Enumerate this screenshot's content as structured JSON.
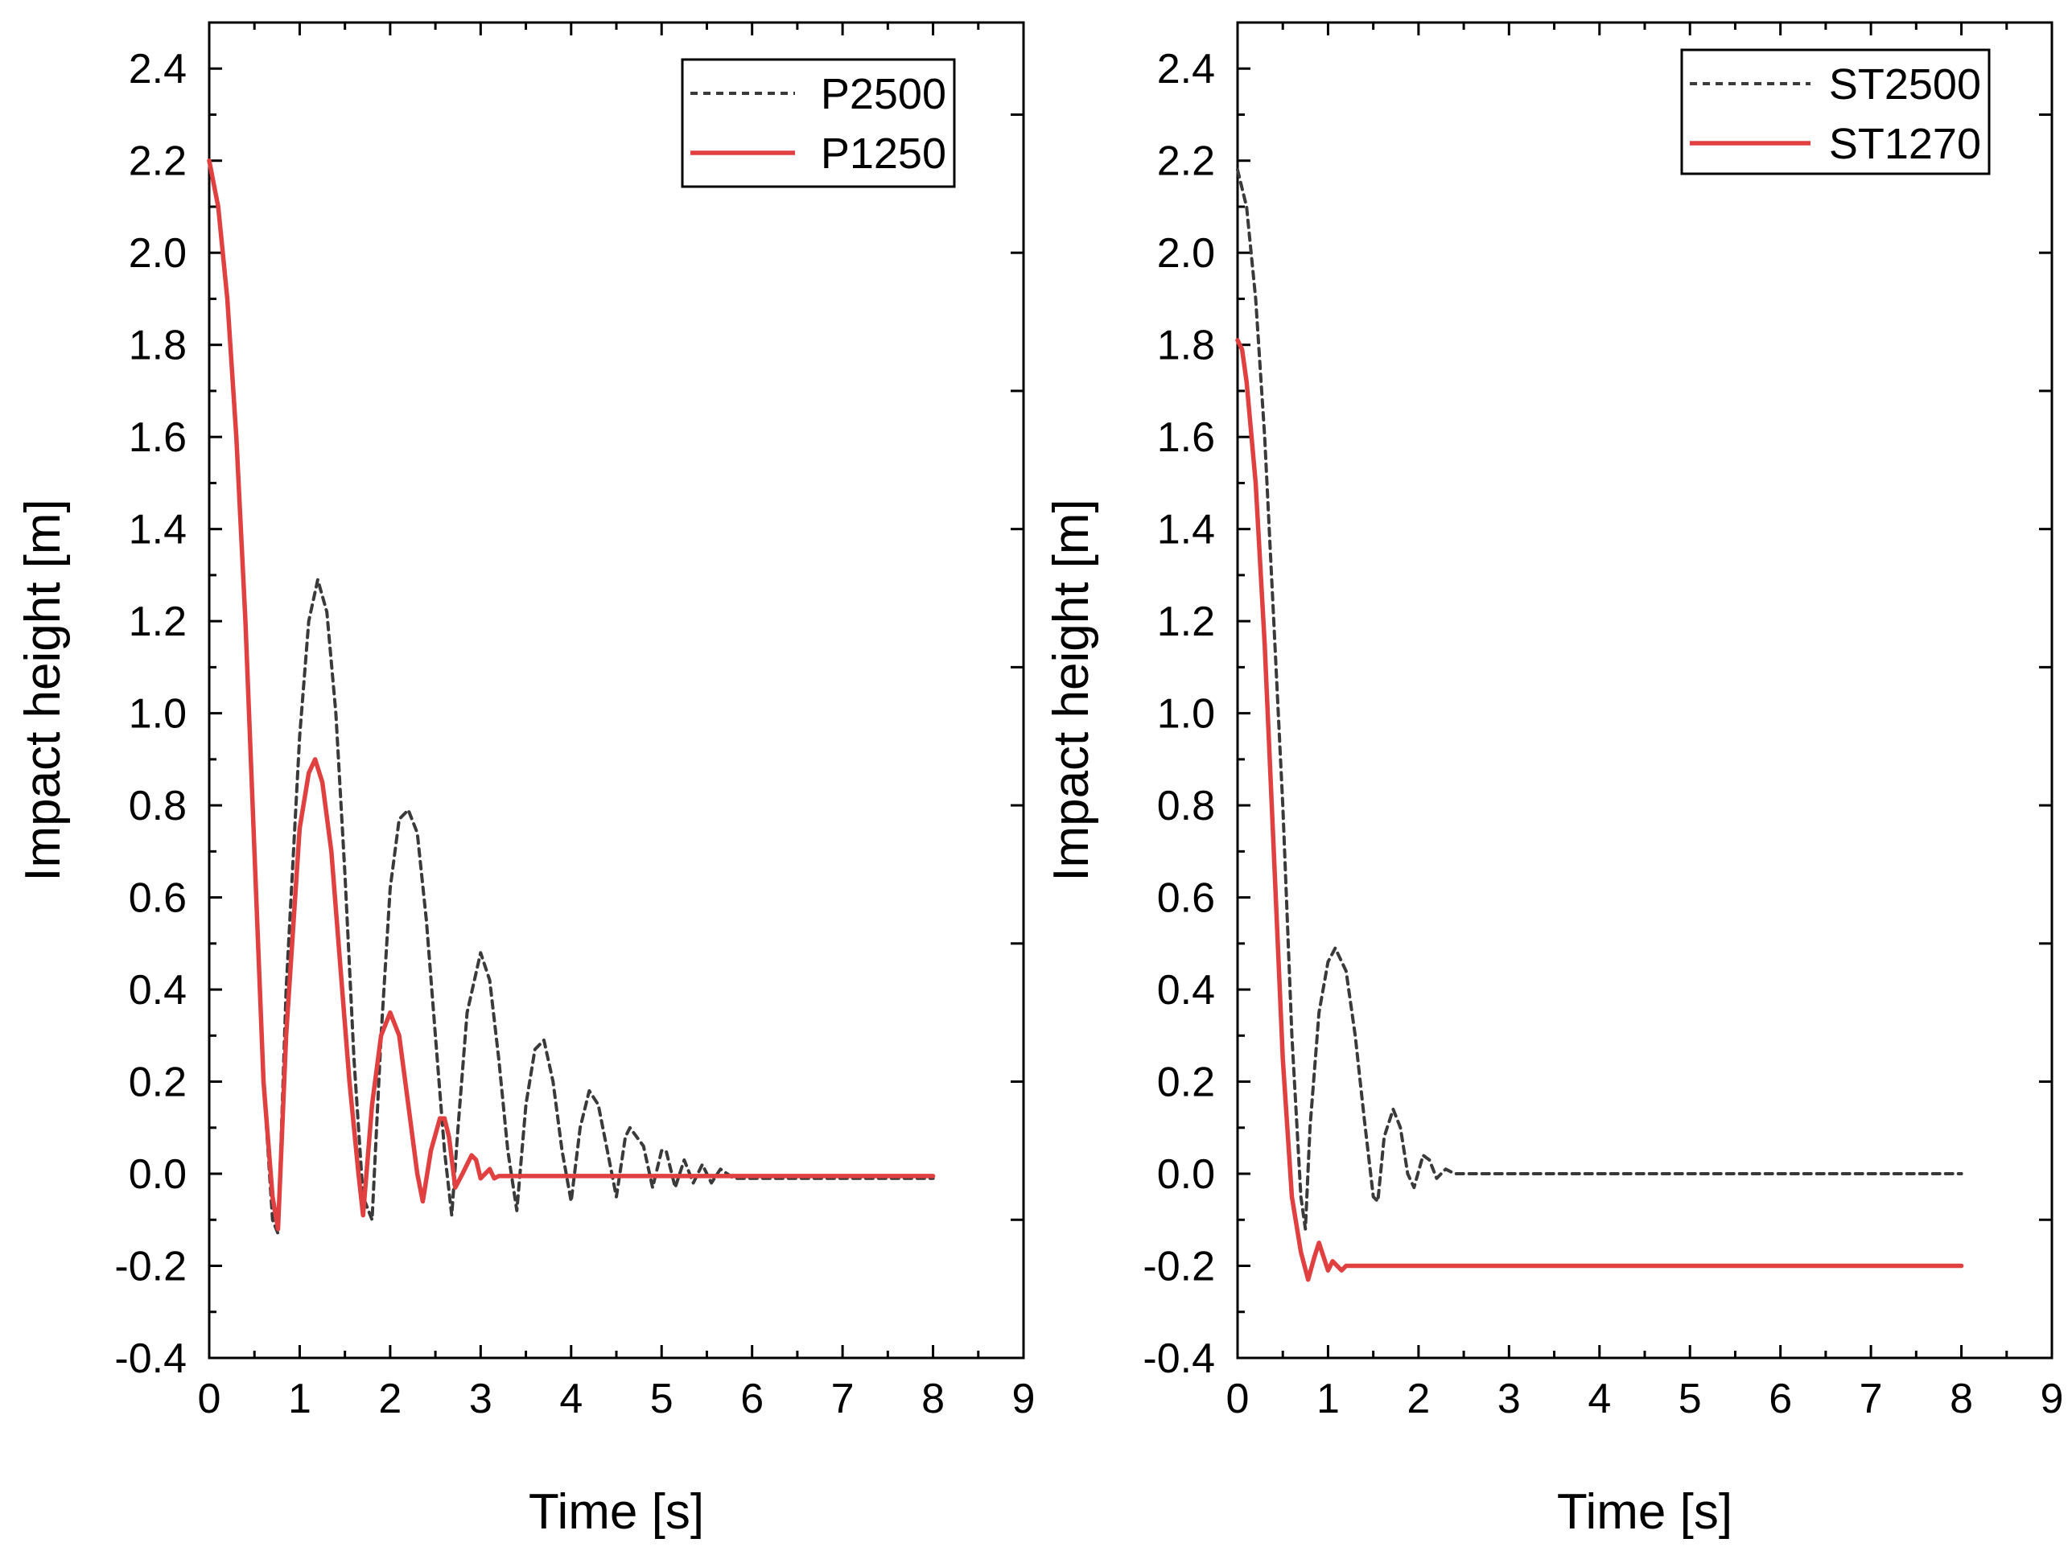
{
  "chart_data": [
    {
      "type": "line",
      "title": "",
      "xlabel": "Time [s]",
      "ylabel": "Impact height [m]",
      "xlim": [
        0,
        9
      ],
      "ylim": [
        -0.4,
        2.5
      ],
      "xticks": [
        "0",
        "1",
        "2",
        "3",
        "4",
        "5",
        "6",
        "7",
        "8",
        "9"
      ],
      "yticks": [
        "-0.4",
        "-0.2",
        "0.0",
        "0.2",
        "0.4",
        "0.6",
        "0.8",
        "1.0",
        "1.2",
        "1.4",
        "1.6",
        "1.8",
        "2.0",
        "2.2",
        "2.4"
      ],
      "legend": "top-right",
      "grid": false,
      "series": [
        {
          "name": "P2500",
          "style": "dashed",
          "color": "#3a3a3a",
          "x": [
            0,
            0.1,
            0.2,
            0.3,
            0.4,
            0.5,
            0.6,
            0.7,
            0.76,
            0.85,
            1.0,
            1.1,
            1.2,
            1.3,
            1.4,
            1.5,
            1.6,
            1.7,
            1.8,
            1.9,
            2.0,
            2.1,
            2.2,
            2.3,
            2.4,
            2.5,
            2.6,
            2.68,
            2.75,
            2.85,
            3.0,
            3.1,
            3.2,
            3.3,
            3.4,
            3.5,
            3.6,
            3.7,
            3.8,
            3.9,
            4.0,
            4.1,
            4.2,
            4.3,
            4.4,
            4.5,
            4.6,
            4.65,
            4.8,
            4.9,
            5.0,
            5.05,
            5.15,
            5.25,
            5.35,
            5.45,
            5.55,
            5.65,
            5.8,
            6.0,
            8.0
          ],
          "y": [
            2.2,
            2.1,
            1.9,
            1.6,
            1.2,
            0.7,
            0.2,
            -0.1,
            -0.13,
            0.4,
            0.95,
            1.2,
            1.29,
            1.22,
            1.0,
            0.65,
            0.25,
            -0.05,
            -0.1,
            0.3,
            0.62,
            0.77,
            0.79,
            0.74,
            0.55,
            0.3,
            0.05,
            -0.09,
            0.1,
            0.35,
            0.48,
            0.42,
            0.25,
            0.05,
            -0.08,
            0.15,
            0.27,
            0.29,
            0.2,
            0.05,
            -0.06,
            0.1,
            0.18,
            0.15,
            0.05,
            -0.05,
            0.08,
            0.1,
            0.06,
            -0.03,
            0.05,
            0.05,
            -0.03,
            0.03,
            -0.02,
            0.02,
            -0.02,
            0.01,
            -0.01,
            -0.01,
            -0.01
          ]
        },
        {
          "name": "P1250",
          "style": "solid",
          "color": "#e04040",
          "x": [
            0,
            0.1,
            0.2,
            0.3,
            0.4,
            0.5,
            0.6,
            0.7,
            0.76,
            0.85,
            1.0,
            1.1,
            1.17,
            1.25,
            1.35,
            1.45,
            1.55,
            1.65,
            1.7,
            1.8,
            1.9,
            2.0,
            2.1,
            2.2,
            2.3,
            2.36,
            2.45,
            2.55,
            2.6,
            2.65,
            2.72,
            2.8,
            2.9,
            2.95,
            3.0,
            3.1,
            3.15,
            3.2,
            3.3,
            3.5,
            5.0,
            8.0
          ],
          "y": [
            2.2,
            2.1,
            1.9,
            1.6,
            1.2,
            0.7,
            0.2,
            -0.05,
            -0.12,
            0.3,
            0.75,
            0.87,
            0.9,
            0.85,
            0.7,
            0.45,
            0.2,
            0.0,
            -0.09,
            0.15,
            0.3,
            0.35,
            0.3,
            0.15,
            0.0,
            -0.06,
            0.05,
            0.12,
            0.12,
            0.08,
            -0.03,
            0.0,
            0.04,
            0.03,
            -0.01,
            0.01,
            -0.01,
            -0.005,
            -0.005,
            -0.005,
            -0.005,
            -0.005
          ]
        }
      ]
    },
    {
      "type": "line",
      "title": "",
      "xlabel": "Time [s]",
      "ylabel": "Impact height [m]",
      "xlim": [
        0,
        9
      ],
      "ylim": [
        -0.4,
        2.5
      ],
      "xticks": [
        "0",
        "1",
        "2",
        "3",
        "4",
        "5",
        "6",
        "7",
        "8",
        "9"
      ],
      "yticks": [
        "-0.4",
        "-0.2",
        "0.0",
        "0.2",
        "0.4",
        "0.6",
        "0.8",
        "1.0",
        "1.2",
        "1.4",
        "1.6",
        "1.8",
        "2.0",
        "2.2",
        "2.4"
      ],
      "legend": "top-right",
      "grid": false,
      "series": [
        {
          "name": "ST2500",
          "style": "dashed",
          "color": "#3a3a3a",
          "x": [
            0,
            0.1,
            0.2,
            0.3,
            0.4,
            0.5,
            0.6,
            0.7,
            0.75,
            0.8,
            0.9,
            1.0,
            1.08,
            1.2,
            1.3,
            1.4,
            1.5,
            1.55,
            1.62,
            1.72,
            1.8,
            1.88,
            1.95,
            2.05,
            2.12,
            2.2,
            2.3,
            2.4,
            2.5,
            3.0,
            8.0
          ],
          "y": [
            2.18,
            2.1,
            1.9,
            1.6,
            1.2,
            0.8,
            0.3,
            -0.05,
            -0.12,
            0.1,
            0.35,
            0.46,
            0.49,
            0.44,
            0.3,
            0.12,
            -0.05,
            -0.06,
            0.08,
            0.14,
            0.1,
            0.0,
            -0.03,
            0.04,
            0.03,
            -0.01,
            0.01,
            0.0,
            0.0,
            0.0,
            0.0
          ]
        },
        {
          "name": "ST1270",
          "style": "solid",
          "color": "#e04040",
          "x": [
            0,
            0.05,
            0.1,
            0.2,
            0.3,
            0.4,
            0.5,
            0.6,
            0.7,
            0.78,
            0.85,
            0.9,
            0.95,
            1.0,
            1.05,
            1.1,
            1.15,
            1.2,
            1.3,
            2.0,
            8.0
          ],
          "y": [
            1.81,
            1.79,
            1.72,
            1.5,
            1.15,
            0.7,
            0.25,
            -0.05,
            -0.17,
            -0.23,
            -0.18,
            -0.15,
            -0.18,
            -0.21,
            -0.19,
            -0.2,
            -0.21,
            -0.2,
            -0.2,
            -0.2,
            -0.2
          ]
        }
      ]
    }
  ]
}
